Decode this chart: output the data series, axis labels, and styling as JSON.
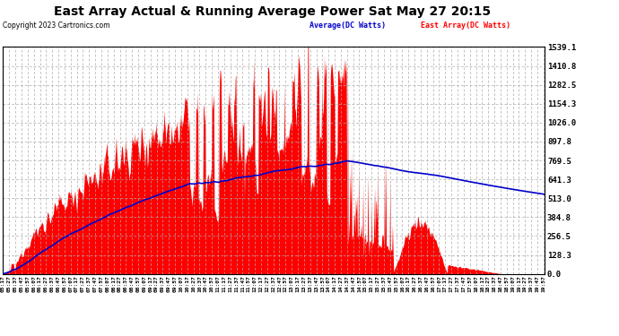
{
  "title": "East Array Actual & Running Average Power Sat May 27 20:15",
  "copyright": "Copyright 2023 Cartronics.com",
  "legend_avg": "Average(DC Watts)",
  "legend_east": "East Array(DC Watts)",
  "ymax": 1539.1,
  "yticks": [
    0.0,
    128.3,
    256.5,
    384.8,
    513.0,
    641.3,
    769.5,
    897.8,
    1026.0,
    1154.3,
    1282.5,
    1410.8,
    1539.1
  ],
  "bar_color": "#FF0000",
  "avg_color": "#0000CC",
  "background_color": "#FFFFFF",
  "grid_color": "#AAAAAA",
  "title_color": "#000000",
  "copyright_color": "#000000",
  "legend_avg_color": "#0000CC",
  "legend_east_color": "#FF0000"
}
